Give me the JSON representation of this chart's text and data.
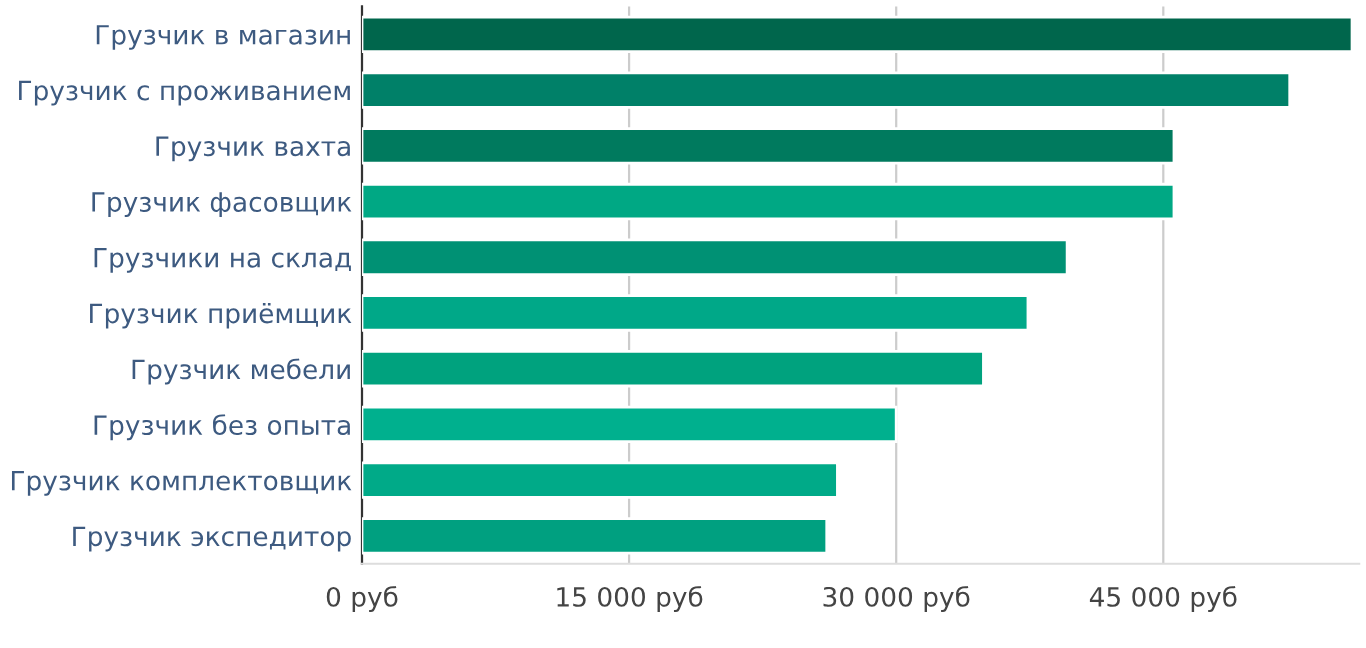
{
  "chart_data": {
    "type": "bar",
    "orientation": "horizontal",
    "categories": [
      "Грузчик в магазин",
      "Грузчик с проживанием",
      "Грузчик вахта",
      "Грузчик фасовщик",
      "Грузчики на склад",
      "Грузчик приёмщик",
      "Грузчик мебели",
      "Грузчик без опыта",
      "Грузчик комплектовщик",
      "Грузчик экспедитор"
    ],
    "values": [
      55600,
      52100,
      45600,
      45600,
      39600,
      37400,
      34900,
      30000,
      26700,
      26100
    ],
    "colors": [
      "#00664c",
      "#008068",
      "#007a5e",
      "#00a884",
      "#009174",
      "#00a888",
      "#00a27e",
      "#00b08e",
      "#00aa88",
      "#00a080"
    ],
    "xlim": [
      0,
      56000
    ],
    "xticks": [
      {
        "value": 0,
        "label": "0 руб"
      },
      {
        "value": 15000,
        "label": "15 000 руб"
      },
      {
        "value": 30000,
        "label": "30 000 руб"
      },
      {
        "value": 45000,
        "label": "45 000 руб"
      }
    ],
    "grid": "x"
  }
}
